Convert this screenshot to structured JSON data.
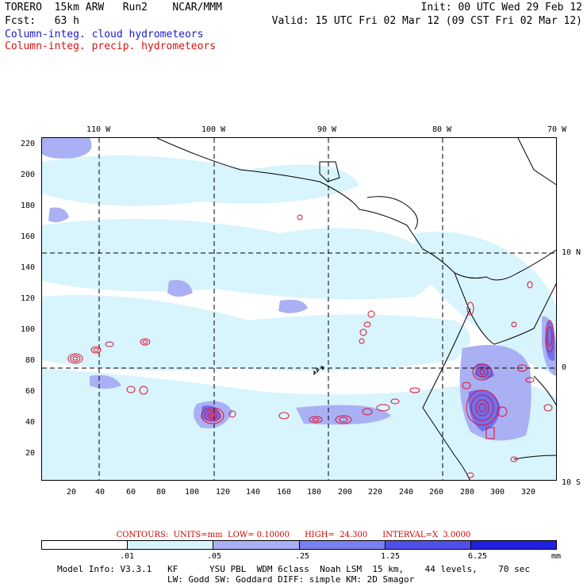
{
  "header": {
    "line1_left": "TORERO  15km ARW   Run2    NCAR/MMM",
    "line1_right": "Init: 00 UTC Wed 29 Feb 12",
    "line2_left": "Fcst:   63 h",
    "line2_right": "Valid: 15 UTC Fri 02 Mar 12 (09 CST Fri 02 Mar 12)",
    "legend_cloud": "Column-integ. cloud hydrometeors",
    "legend_precip": "Column-integ. precip. hydrometeors"
  },
  "map": {
    "lon_labels": [
      "110 W",
      "100 W",
      "90 W",
      "80 W",
      "70 W"
    ],
    "lat_labels": [
      "10 N",
      "0",
      "10 S"
    ],
    "x_ticks": [
      "20",
      "40",
      "60",
      "80",
      "100",
      "120",
      "140",
      "160",
      "180",
      "200",
      "220",
      "240",
      "260",
      "280",
      "300",
      "320"
    ],
    "y_ticks": [
      "220",
      "200",
      "180",
      "160",
      "140",
      "120",
      "100",
      "80",
      "60",
      "40",
      "20"
    ],
    "colors": {
      "light_cyan": "#d8f4fc",
      "lavender": "#aab0f4",
      "medium_blue": "#7070ee",
      "land_line": "#000000",
      "precip_contour": "#e01030"
    }
  },
  "contour_text": "CONTOURS:  UNITS=mm  LOW= 0.10000      HIGH=  24.300      INTERVAL=X  3.0000",
  "colorbar": {
    "colors": [
      "#ffffff",
      "#d8f4fc",
      "#aab0f4",
      "#7a80f0",
      "#5050e8",
      "#2020e0"
    ],
    "labels": [
      ".01",
      ".05",
      ".25",
      "1.25",
      "6.25"
    ],
    "unit": "mm"
  },
  "footer": {
    "line1": "Model Info: V3.3.1   KF      YSU PBL  WDM 6class  Noah LSM  15 km,    44 levels,    70 sec",
    "line2": "LW: Godd SW: Goddard DIFF: simple KM: 2D Smagor"
  }
}
